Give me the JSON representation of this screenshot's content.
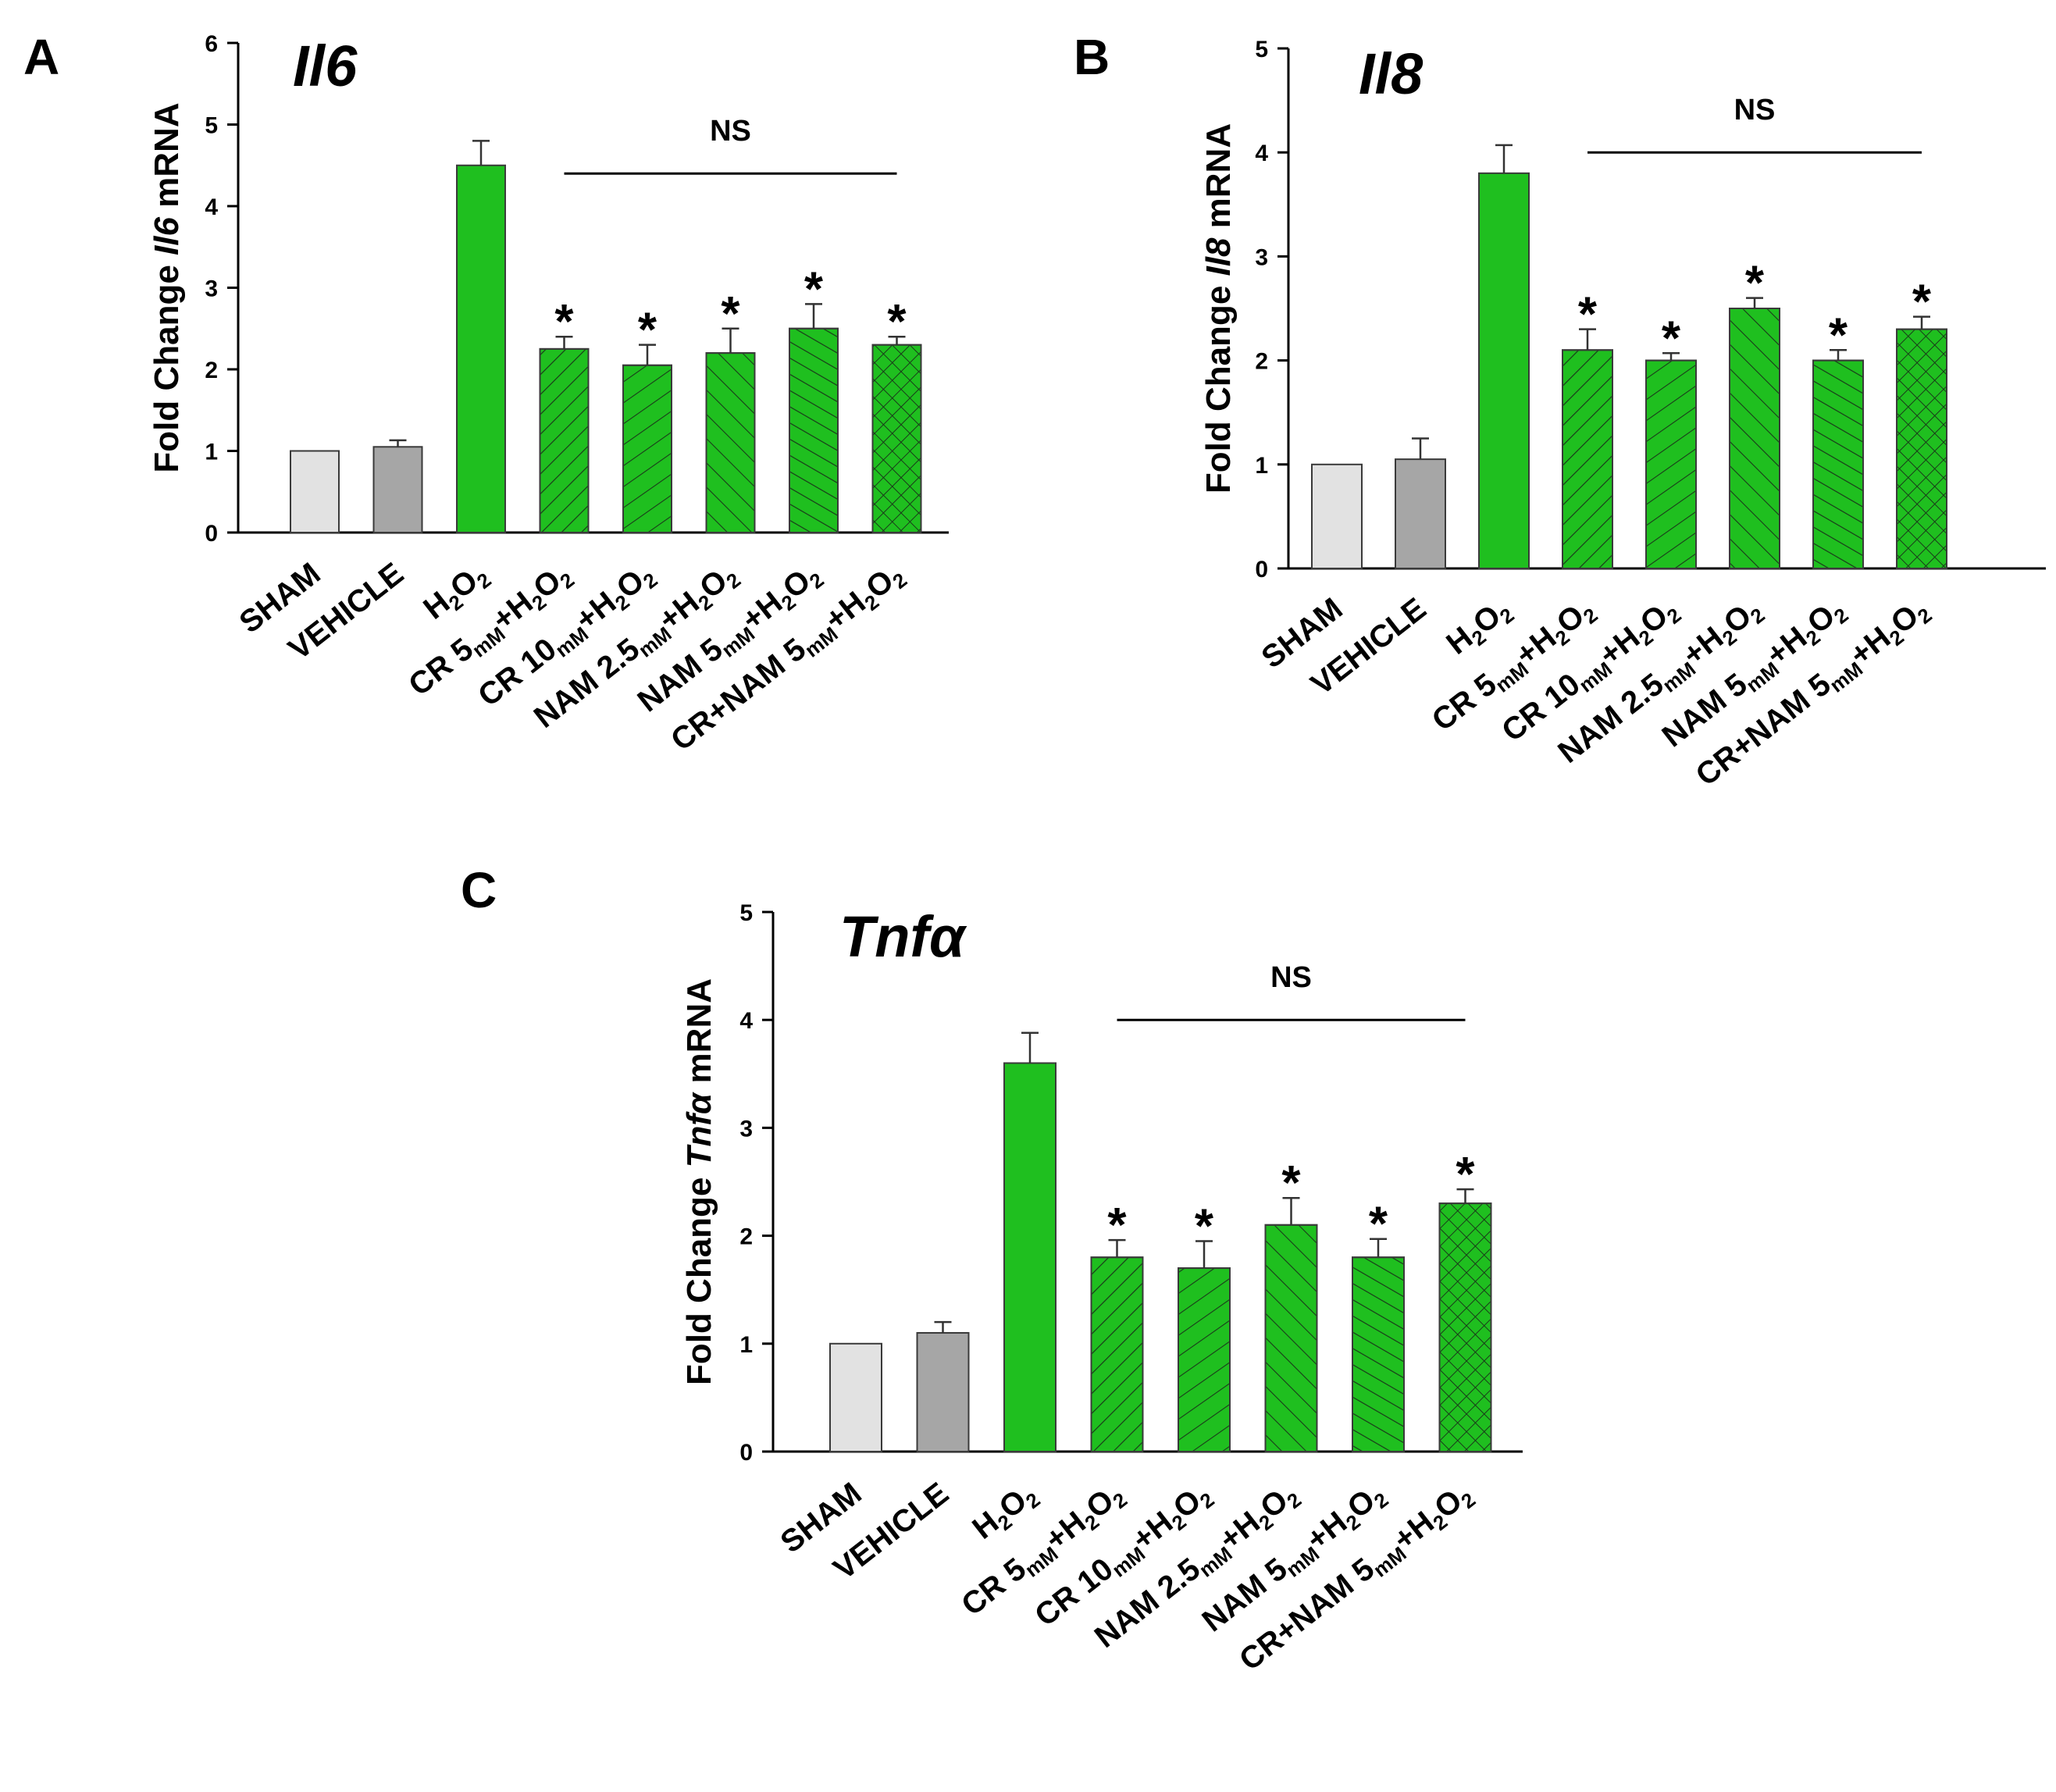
{
  "figure": {
    "categories_display": [
      {
        "key": "sham",
        "parts": [
          [
            "SHAM",
            ""
          ]
        ]
      },
      {
        "key": "vehicle",
        "parts": [
          [
            "VEHICLE",
            ""
          ]
        ]
      },
      {
        "key": "h2o2",
        "parts": [
          [
            "H",
            ""
          ],
          [
            "2",
            "sub"
          ],
          [
            "O",
            ""
          ],
          [
            "2",
            "sub"
          ]
        ]
      },
      {
        "key": "cr5",
        "parts": [
          [
            "CR 5",
            ""
          ],
          [
            "mM",
            "sub"
          ],
          [
            "+H",
            ""
          ],
          [
            "2",
            "sub"
          ],
          [
            "O",
            ""
          ],
          [
            "2",
            "sub"
          ]
        ]
      },
      {
        "key": "cr10",
        "parts": [
          [
            "CR 10",
            ""
          ],
          [
            "mM",
            "sub"
          ],
          [
            "+H",
            ""
          ],
          [
            "2",
            "sub"
          ],
          [
            "O",
            ""
          ],
          [
            "2",
            "sub"
          ]
        ]
      },
      {
        "key": "nam25",
        "parts": [
          [
            "NAM 2.5",
            ""
          ],
          [
            "mM",
            "sub"
          ],
          [
            "+H",
            ""
          ],
          [
            "2",
            "sub"
          ],
          [
            "O",
            ""
          ],
          [
            "2",
            "sub"
          ]
        ]
      },
      {
        "key": "nam5",
        "parts": [
          [
            "NAM 5",
            ""
          ],
          [
            "mM",
            "sub"
          ],
          [
            "+H",
            ""
          ],
          [
            "2",
            "sub"
          ],
          [
            "O",
            ""
          ],
          [
            "2",
            "sub"
          ]
        ]
      },
      {
        "key": "crnam5",
        "parts": [
          [
            "CR+NAM 5",
            ""
          ],
          [
            "mM",
            "sub"
          ],
          [
            "+H",
            ""
          ],
          [
            "2",
            "sub"
          ],
          [
            "O",
            ""
          ],
          [
            "2",
            "sub"
          ]
        ]
      }
    ],
    "bar_styles": [
      {
        "fill": "#e2e2e2",
        "pattern": "none"
      },
      {
        "fill": "#a6a6a6",
        "pattern": "none"
      },
      {
        "fill": "#1fbf1f",
        "pattern": "none"
      },
      {
        "fill": "#1fbf1f",
        "pattern": "fwd-dense"
      },
      {
        "fill": "#1fbf1f",
        "pattern": "fwd"
      },
      {
        "fill": "#1fbf1f",
        "pattern": "back"
      },
      {
        "fill": "#1fbf1f",
        "pattern": "back-dense"
      },
      {
        "fill": "#1fbf1f",
        "pattern": "cross"
      }
    ],
    "colors": {
      "axis": "#000000",
      "bar_stroke": "#3a3a3a"
    }
  },
  "chart_data": [
    {
      "panel": "A",
      "type": "bar",
      "title_gene": "Il6",
      "ylabel_prefix": "Fold Change ",
      "ylabel_gene": "Il6",
      "ylabel_suffix": " mRNA",
      "categories": [
        "SHAM",
        "VEHICLE",
        "H2O2",
        "CR 5mM+H2O2",
        "CR 10mM+H2O2",
        "NAM 2.5mM+H2O2",
        "NAM 5mM+H2O2",
        "CR+NAM 5mM+H2O2"
      ],
      "values": [
        1.0,
        1.05,
        4.5,
        2.25,
        2.05,
        2.2,
        2.5,
        2.3
      ],
      "errors": [
        0.0,
        0.08,
        0.3,
        0.15,
        0.25,
        0.3,
        0.3,
        0.1
      ],
      "significant": [
        false,
        false,
        false,
        true,
        true,
        true,
        true,
        true
      ],
      "significance_marker": "*",
      "ns_label": "NS",
      "ns_span": [
        3,
        7
      ],
      "ns_level": 4.4,
      "ylim": [
        0,
        6
      ],
      "yticks": [
        0,
        1,
        2,
        3,
        4,
        5,
        6
      ]
    },
    {
      "panel": "B",
      "type": "bar",
      "title_gene": "Il8",
      "ylabel_prefix": "Fold Change ",
      "ylabel_gene": "Il8",
      "ylabel_suffix": " mRNA",
      "categories": [
        "SHAM",
        "VEHICLE",
        "H2O2",
        "CR 5mM+H2O2",
        "CR 10mM+H2O2",
        "NAM 2.5mM+H2O2",
        "NAM 5mM+H2O2",
        "CR+NAM 5mM+H2O2"
      ],
      "values": [
        1.0,
        1.05,
        3.8,
        2.1,
        2.0,
        2.5,
        2.0,
        2.3
      ],
      "errors": [
        0.0,
        0.2,
        0.27,
        0.2,
        0.07,
        0.1,
        0.1,
        0.12
      ],
      "significant": [
        false,
        false,
        false,
        true,
        true,
        true,
        true,
        true
      ],
      "significance_marker": "*",
      "ns_label": "NS",
      "ns_span": [
        3,
        7
      ],
      "ns_level": 4.0,
      "ylim": [
        0,
        5
      ],
      "yticks": [
        0,
        1,
        2,
        3,
        4,
        5
      ]
    },
    {
      "panel": "C",
      "type": "bar",
      "title_gene": "Tnfα",
      "ylabel_prefix": "Fold Change ",
      "ylabel_gene": "Tnfα",
      "ylabel_suffix": " mRNA",
      "categories": [
        "SHAM",
        "VEHICLE",
        "H2O2",
        "CR 5mM+H2O2",
        "CR 10mM+H2O2",
        "NAM 2.5mM+H2O2",
        "NAM 5mM+H2O2",
        "CR+NAM 5mM+H2O2"
      ],
      "values": [
        1.0,
        1.1,
        3.6,
        1.8,
        1.7,
        2.1,
        1.8,
        2.3
      ],
      "errors": [
        0.0,
        0.1,
        0.28,
        0.16,
        0.25,
        0.25,
        0.17,
        0.13
      ],
      "significant": [
        false,
        false,
        false,
        true,
        true,
        true,
        true,
        true
      ],
      "significance_marker": "*",
      "ns_label": "NS",
      "ns_span": [
        3,
        7
      ],
      "ns_level": 4.0,
      "ylim": [
        0,
        5
      ],
      "yticks": [
        0,
        1,
        2,
        3,
        4,
        5
      ]
    }
  ]
}
